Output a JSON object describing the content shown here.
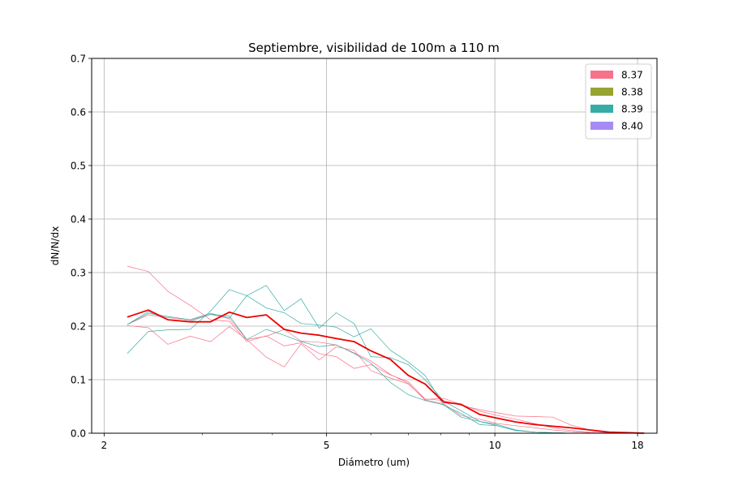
{
  "chart_data": {
    "type": "line",
    "title": "Septiembre, visibilidad de 100m a 110 m",
    "xlabel": "Diámetro (um)",
    "ylabel": "dN/N/dx",
    "x_scale": "log",
    "xlim": [
      1.9,
      19.5
    ],
    "ylim": [
      0,
      0.7
    ],
    "xticks": [
      2,
      5,
      10,
      18
    ],
    "xtick_labels": [
      "2",
      "5",
      "10",
      "18"
    ],
    "yticks": [
      0.0,
      0.1,
      0.2,
      0.3,
      0.4,
      0.5,
      0.6,
      0.7
    ],
    "ytick_labels": [
      "0.0",
      "0.1",
      "0.2",
      "0.3",
      "0.4",
      "0.5",
      "0.6",
      "0.7"
    ],
    "grid": true,
    "legend_position": "top-right",
    "legend": [
      {
        "label": "8.37",
        "color": "#f77189"
      },
      {
        "label": "8.38",
        "color": "#97a431"
      },
      {
        "label": "8.39",
        "color": "#36ada4"
      },
      {
        "label": "8.40",
        "color": "#a48cf4"
      }
    ],
    "x": [
      2.2,
      2.4,
      2.6,
      2.85,
      3.1,
      3.35,
      3.6,
      3.9,
      4.2,
      4.5,
      4.85,
      5.2,
      5.6,
      6.0,
      6.5,
      7.0,
      7.5,
      8.1,
      8.7,
      9.4,
      10.1,
      10.9,
      11.8,
      12.7,
      13.7,
      14.8,
      16.0,
      17.2,
      18.5
    ],
    "series": [
      {
        "color": "#f77189",
        "width": 0.7,
        "values": [
          0.312,
          0.302,
          0.265,
          0.239,
          0.212,
          0.209,
          0.171,
          0.182,
          0.163,
          0.169,
          0.149,
          0.143,
          0.121,
          0.128,
          0.109,
          0.096,
          0.064,
          0.061,
          0.052,
          0.044,
          0.038,
          0.032,
          0.031,
          0.03,
          0.015,
          0.006,
          0.002,
          0.001,
          0.0
        ]
      },
      {
        "color": "#f77189",
        "width": 0.7,
        "values": [
          0.201,
          0.197,
          0.166,
          0.181,
          0.171,
          0.199,
          0.175,
          0.142,
          0.124,
          0.167,
          0.137,
          0.161,
          0.155,
          0.117,
          0.103,
          0.092,
          0.063,
          0.065,
          0.054,
          0.041,
          0.033,
          0.026,
          0.018,
          0.01,
          0.005,
          0.002,
          0.001,
          0.0,
          0.0
        ]
      },
      {
        "color": "#f77189",
        "width": 0.7,
        "values": [
          0.203,
          0.221,
          0.216,
          0.211,
          0.222,
          0.214,
          0.175,
          0.181,
          0.194,
          0.172,
          0.17,
          0.165,
          0.15,
          0.135,
          0.11,
          0.093,
          0.062,
          0.055,
          0.033,
          0.026,
          0.018,
          0.014,
          0.01,
          0.006,
          0.003,
          0.001,
          0.0,
          0.0,
          0.0
        ]
      },
      {
        "color": "#36ada4",
        "width": 0.7,
        "values": [
          0.149,
          0.19,
          0.193,
          0.194,
          0.228,
          0.268,
          0.257,
          0.276,
          0.229,
          0.251,
          0.196,
          0.225,
          0.205,
          0.143,
          0.141,
          0.128,
          0.1,
          0.06,
          0.042,
          0.022,
          0.016,
          0.006,
          0.002,
          0.001,
          0.0,
          0.0,
          0.0,
          0.0,
          0.0
        ]
      },
      {
        "color": "#36ada4",
        "width": 0.7,
        "values": [
          0.203,
          0.224,
          0.218,
          0.212,
          0.224,
          0.215,
          0.257,
          0.234,
          0.225,
          0.205,
          0.202,
          0.198,
          0.18,
          0.195,
          0.155,
          0.133,
          0.108,
          0.052,
          0.037,
          0.016,
          0.014,
          0.005,
          0.002,
          0.001,
          0.0,
          0.0,
          0.0,
          0.0,
          0.0
        ]
      },
      {
        "color": "#36ada4",
        "width": 0.7,
        "values": [
          0.203,
          0.227,
          0.212,
          0.209,
          0.222,
          0.219,
          0.175,
          0.194,
          0.183,
          0.171,
          0.162,
          0.165,
          0.149,
          0.131,
          0.095,
          0.072,
          0.061,
          0.053,
          0.03,
          0.022,
          0.014,
          0.005,
          0.002,
          0.001,
          0.0,
          0.0,
          0.0,
          0.0,
          0.0
        ]
      },
      {
        "color": "#ee0000",
        "width": 1.8,
        "values": [
          0.217,
          0.23,
          0.212,
          0.208,
          0.208,
          0.226,
          0.216,
          0.221,
          0.194,
          0.187,
          0.183,
          0.177,
          0.171,
          0.154,
          0.138,
          0.108,
          0.092,
          0.058,
          0.054,
          0.035,
          0.028,
          0.021,
          0.016,
          0.013,
          0.01,
          0.006,
          0.002,
          0.001,
          0.0
        ]
      }
    ]
  }
}
